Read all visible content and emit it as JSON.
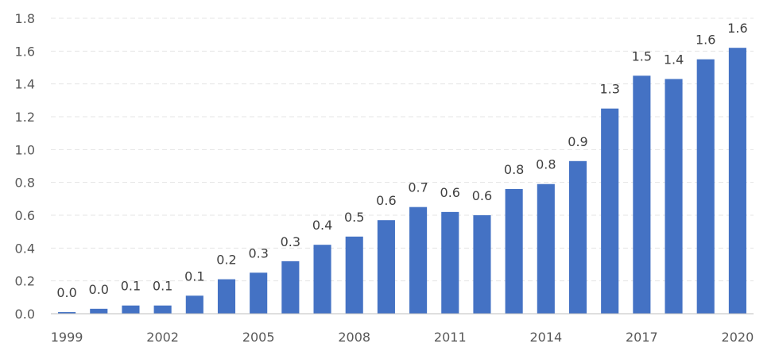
{
  "chart_data": {
    "type": "bar",
    "title": "",
    "xlabel": "",
    "ylabel": "",
    "ylim": [
      0,
      1.8
    ],
    "yticks": [
      "0.0",
      "0.2",
      "0.4",
      "0.6",
      "0.8",
      "1.0",
      "1.2",
      "1.4",
      "1.6",
      "1.8"
    ],
    "grid": true,
    "bar_color": "#4472C4",
    "categories": [
      "1999",
      "2000",
      "2001",
      "2002",
      "2003",
      "2004",
      "2005",
      "2006",
      "2007",
      "2008",
      "2009",
      "2010",
      "2011",
      "2012",
      "2013",
      "2014",
      "2015",
      "2016",
      "2017",
      "2018",
      "2019",
      "2020"
    ],
    "xtick_labels": [
      "1999",
      "",
      "",
      "2002",
      "",
      "",
      "2005",
      "",
      "",
      "2008",
      "",
      "",
      "2011",
      "",
      "",
      "2014",
      "",
      "",
      "2017",
      "",
      "",
      "2020"
    ],
    "values": [
      0.01,
      0.03,
      0.05,
      0.05,
      0.11,
      0.21,
      0.25,
      0.32,
      0.42,
      0.47,
      0.57,
      0.65,
      0.62,
      0.6,
      0.76,
      0.79,
      0.93,
      1.25,
      1.45,
      1.43,
      1.55,
      1.62
    ],
    "data_labels": [
      "0.0",
      "0.0",
      "0.1",
      "0.1",
      "0.1",
      "0.2",
      "0.3",
      "0.3",
      "0.4",
      "0.5",
      "0.6",
      "0.7",
      "0.6",
      "0.6",
      "0.8",
      "0.8",
      "0.9",
      "1.3",
      "1.5",
      "1.4",
      "1.6",
      "1.6"
    ]
  }
}
